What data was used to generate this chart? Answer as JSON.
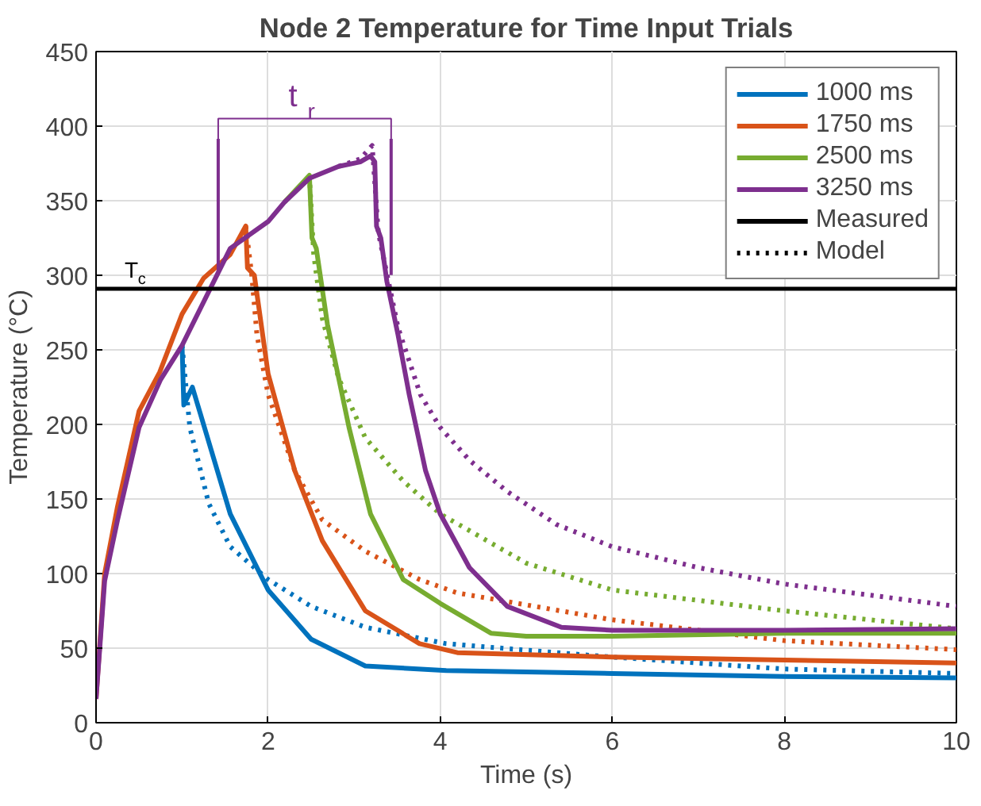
{
  "chart_data": {
    "type": "line",
    "title": "Node 2 Temperature for Time Input Trials",
    "xlabel": "Time (s)",
    "ylabel": "Temperature (°C)",
    "xlim": [
      0,
      10
    ],
    "ylim": [
      0,
      450
    ],
    "xticks": [
      0,
      2,
      4,
      6,
      8,
      10
    ],
    "yticks": [
      0,
      50,
      100,
      150,
      200,
      250,
      300,
      350,
      400,
      450
    ],
    "grid": true,
    "legend": "top right",
    "line_style": "solid",
    "marker": "none",
    "series": [
      {
        "name": "1000 ms",
        "color": "#0072bd",
        "x": [
          1.0,
          1.02,
          1.12,
          1.56,
          2.0,
          2.5,
          3.13,
          4.07,
          6,
          8,
          10
        ],
        "values": [
          253,
          213,
          225,
          140,
          89,
          56,
          38,
          35,
          33,
          31,
          30
        ]
      },
      {
        "name": "1750 ms",
        "color": "#d95319",
        "x": [
          0,
          0.05,
          0.1,
          0.25,
          0.5,
          0.74,
          1.0,
          1.25,
          1.56,
          1.74,
          1.76,
          1.84,
          2.0,
          2.31,
          2.63,
          3.13,
          3.76,
          4.2,
          6,
          8,
          10
        ],
        "values": [
          16,
          58,
          100,
          145,
          209,
          235,
          274,
          298,
          314,
          333,
          305,
          300,
          234,
          169,
          122,
          75,
          53,
          47,
          44,
          42,
          40
        ]
      },
      {
        "name": "2500 ms",
        "color": "#77ac30",
        "x": [
          2.19,
          2.48,
          2.51,
          2.56,
          2.69,
          2.94,
          3.19,
          3.57,
          4.0,
          4.59,
          5,
          6,
          8,
          10
        ],
        "values": [
          349,
          367,
          325,
          318,
          267,
          198,
          140,
          96,
          80,
          60,
          58,
          58,
          60,
          60
        ]
      },
      {
        "name": "3250 ms",
        "color": "#7e2f8e",
        "x": [
          0,
          0.05,
          0.1,
          0.25,
          0.5,
          0.75,
          1.0,
          1.56,
          2.0,
          2.19,
          2.48,
          2.82,
          3.07,
          3.19,
          3.24,
          3.26,
          3.31,
          3.38,
          3.51,
          3.64,
          3.83,
          4.0,
          4.34,
          4.78,
          5.41,
          6,
          8,
          10
        ],
        "values": [
          16,
          55,
          95,
          136,
          198,
          230,
          253,
          318,
          336,
          349,
          365,
          373,
          376,
          380,
          376,
          333,
          325,
          296,
          260,
          220,
          169,
          140,
          104,
          78,
          64,
          62,
          62,
          63
        ]
      },
      {
        "color": "#0072bd",
        "line_style": "dotted",
        "x": [
          1.0,
          1.09,
          1.31,
          1.56,
          2.0,
          2.5,
          3.13,
          4.07,
          6,
          8,
          10
        ],
        "values": [
          253,
          198,
          147,
          118,
          96,
          78,
          64,
          53,
          44,
          36,
          33
        ]
      },
      {
        "color": "#d95319",
        "line_style": "dotted",
        "x": [
          1.74,
          1.81,
          1.87,
          2.0,
          2.31,
          2.63,
          3.13,
          3.76,
          4.2,
          6,
          8,
          10
        ],
        "values": [
          333,
          300,
          260,
          220,
          169,
          136,
          115,
          96,
          87,
          69,
          55,
          49
        ]
      },
      {
        "color": "#77ac30",
        "line_style": "dotted",
        "x": [
          2.48,
          2.53,
          2.63,
          2.82,
          3.13,
          3.57,
          4.0,
          5,
          6,
          8,
          10
        ],
        "values": [
          367,
          314,
          271,
          231,
          191,
          162,
          140,
          107,
          89,
          75,
          63
        ]
      },
      {
        "color": "#7e2f8e",
        "line_style": "dotted",
        "x": [
          2.82,
          3.07,
          3.21,
          3.28,
          3.51,
          3.77,
          4.0,
          4.34,
          4.78,
          5.35,
          6,
          7,
          8,
          10
        ],
        "values": [
          373,
          378,
          387,
          329,
          265,
          220,
          198,
          176,
          155,
          133,
          118,
          104,
          93,
          78
        ]
      },
      {
        "name": "Measured",
        "color": "#000000",
        "line_style": "solid",
        "values": [
          null
        ]
      },
      {
        "name": "Model",
        "color": "#000000",
        "line_style": "dotted",
        "values": [
          null
        ]
      }
    ],
    "ref_lines": [
      {
        "axis": "y",
        "value": 291,
        "label": "T$_{c}$",
        "color": "#000000"
      },
      {
        "axis": "x",
        "value": 1.42,
        "color": "#7e2f8e"
      },
      {
        "axis": "x",
        "value": 3.43,
        "color": "#7e2f8e"
      }
    ],
    "annotations": [
      "t$_{r}$"
    ]
  }
}
